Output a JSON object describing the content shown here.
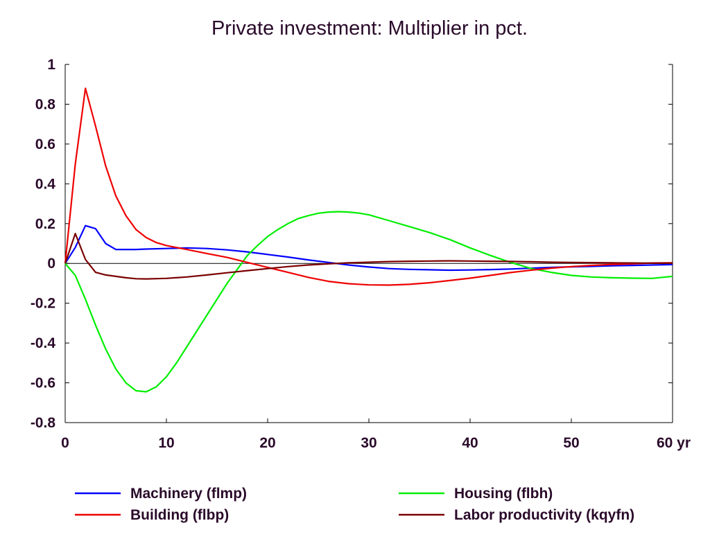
{
  "chart_data": {
    "type": "line",
    "title": "Private investment: Multiplier in pct.",
    "xlabel": "",
    "ylabel": "",
    "x_unit_label": "yr",
    "xlim": [
      0,
      60
    ],
    "ylim": [
      -0.8,
      1.0
    ],
    "x_ticks": [
      0,
      10,
      20,
      30,
      40,
      50,
      60
    ],
    "y_ticks": [
      1,
      0.8,
      0.6,
      0.4,
      0.2,
      0,
      -0.2,
      -0.4,
      -0.6,
      -0.8
    ],
    "y_tick_labels": [
      "1",
      "0.8",
      "0.6",
      "0.4",
      "0.2",
      "0",
      "-0.2",
      "-0.4",
      "-0.6",
      "-0.8"
    ],
    "zero_line": true,
    "grid": false,
    "legend_position": "bottom",
    "series": [
      {
        "name": "Machinery (flmp)",
        "color": "#0000ff",
        "points": [
          [
            0,
            0
          ],
          [
            1,
            0.08
          ],
          [
            2,
            0.19
          ],
          [
            3,
            0.175
          ],
          [
            4,
            0.1
          ],
          [
            5,
            0.07
          ],
          [
            6,
            0.07
          ],
          [
            7,
            0.07
          ],
          [
            8,
            0.072
          ],
          [
            10,
            0.075
          ],
          [
            12,
            0.078
          ],
          [
            14,
            0.075
          ],
          [
            16,
            0.068
          ],
          [
            18,
            0.058
          ],
          [
            20,
            0.045
          ],
          [
            22,
            0.032
          ],
          [
            24,
            0.018
          ],
          [
            26,
            0.005
          ],
          [
            28,
            -0.008
          ],
          [
            30,
            -0.018
          ],
          [
            32,
            -0.026
          ],
          [
            34,
            -0.03
          ],
          [
            36,
            -0.032
          ],
          [
            38,
            -0.034
          ],
          [
            40,
            -0.033
          ],
          [
            42,
            -0.031
          ],
          [
            44,
            -0.028
          ],
          [
            46,
            -0.024
          ],
          [
            48,
            -0.02
          ],
          [
            50,
            -0.017
          ],
          [
            52,
            -0.015
          ],
          [
            54,
            -0.012
          ],
          [
            56,
            -0.01
          ],
          [
            58,
            -0.008
          ],
          [
            60,
            -0.006
          ]
        ]
      },
      {
        "name": "Housing (flbh)",
        "color": "#00ee00",
        "points": [
          [
            0,
            0
          ],
          [
            1,
            -0.06
          ],
          [
            2,
            -0.18
          ],
          [
            3,
            -0.31
          ],
          [
            4,
            -0.43
          ],
          [
            5,
            -0.53
          ],
          [
            6,
            -0.6
          ],
          [
            7,
            -0.64
          ],
          [
            8,
            -0.645
          ],
          [
            9,
            -0.62
          ],
          [
            10,
            -0.57
          ],
          [
            11,
            -0.5
          ],
          [
            12,
            -0.42
          ],
          [
            13,
            -0.34
          ],
          [
            14,
            -0.26
          ],
          [
            15,
            -0.18
          ],
          [
            16,
            -0.1
          ],
          [
            17,
            -0.03
          ],
          [
            18,
            0.04
          ],
          [
            19,
            0.09
          ],
          [
            20,
            0.135
          ],
          [
            21,
            0.17
          ],
          [
            22,
            0.2
          ],
          [
            23,
            0.225
          ],
          [
            24,
            0.24
          ],
          [
            25,
            0.252
          ],
          [
            26,
            0.258
          ],
          [
            27,
            0.26
          ],
          [
            28,
            0.258
          ],
          [
            29,
            0.253
          ],
          [
            30,
            0.244
          ],
          [
            32,
            0.215
          ],
          [
            34,
            0.185
          ],
          [
            36,
            0.155
          ],
          [
            38,
            0.12
          ],
          [
            40,
            0.078
          ],
          [
            42,
            0.04
          ],
          [
            44,
            0.005
          ],
          [
            46,
            -0.025
          ],
          [
            48,
            -0.045
          ],
          [
            50,
            -0.06
          ],
          [
            52,
            -0.068
          ],
          [
            54,
            -0.072
          ],
          [
            56,
            -0.074
          ],
          [
            58,
            -0.075
          ],
          [
            59,
            -0.07
          ],
          [
            60,
            -0.065
          ]
        ]
      },
      {
        "name": "Building (flbp)",
        "color": "#ee0000",
        "points": [
          [
            0,
            0
          ],
          [
            1,
            0.5
          ],
          [
            2,
            0.88
          ],
          [
            3,
            0.69
          ],
          [
            4,
            0.49
          ],
          [
            5,
            0.34
          ],
          [
            6,
            0.24
          ],
          [
            7,
            0.17
          ],
          [
            8,
            0.13
          ],
          [
            9,
            0.105
          ],
          [
            10,
            0.09
          ],
          [
            12,
            0.07
          ],
          [
            14,
            0.05
          ],
          [
            16,
            0.03
          ],
          [
            18,
            0.005
          ],
          [
            20,
            -0.02
          ],
          [
            22,
            -0.045
          ],
          [
            24,
            -0.07
          ],
          [
            26,
            -0.09
          ],
          [
            28,
            -0.102
          ],
          [
            30,
            -0.108
          ],
          [
            32,
            -0.109
          ],
          [
            34,
            -0.105
          ],
          [
            36,
            -0.097
          ],
          [
            38,
            -0.086
          ],
          [
            40,
            -0.074
          ],
          [
            42,
            -0.06
          ],
          [
            44,
            -0.046
          ],
          [
            46,
            -0.034
          ],
          [
            48,
            -0.024
          ],
          [
            50,
            -0.016
          ],
          [
            52,
            -0.01
          ],
          [
            54,
            -0.005
          ],
          [
            56,
            -0.002
          ],
          [
            58,
            0.002
          ],
          [
            60,
            0.003
          ]
        ]
      },
      {
        "name": "Labor productivity (kqyfn)",
        "color": "#7a0000",
        "points": [
          [
            0,
            0
          ],
          [
            1,
            0.15
          ],
          [
            2,
            0.02
          ],
          [
            3,
            -0.045
          ],
          [
            4,
            -0.058
          ],
          [
            5,
            -0.065
          ],
          [
            6,
            -0.072
          ],
          [
            7,
            -0.077
          ],
          [
            8,
            -0.078
          ],
          [
            10,
            -0.075
          ],
          [
            12,
            -0.068
          ],
          [
            14,
            -0.058
          ],
          [
            16,
            -0.047
          ],
          [
            18,
            -0.036
          ],
          [
            20,
            -0.026
          ],
          [
            22,
            -0.016
          ],
          [
            24,
            -0.008
          ],
          [
            26,
            -0.002
          ],
          [
            28,
            0.003
          ],
          [
            30,
            0.006
          ],
          [
            32,
            0.009
          ],
          [
            34,
            0.011
          ],
          [
            36,
            0.012
          ],
          [
            38,
            0.013
          ],
          [
            40,
            0.012
          ],
          [
            42,
            0.011
          ],
          [
            44,
            0.01
          ],
          [
            46,
            0.008
          ],
          [
            48,
            0.006
          ],
          [
            50,
            0.005
          ],
          [
            52,
            0.004
          ],
          [
            54,
            0.003
          ],
          [
            56,
            0.002
          ],
          [
            58,
            0.001
          ],
          [
            60,
            0.001
          ]
        ]
      }
    ]
  }
}
